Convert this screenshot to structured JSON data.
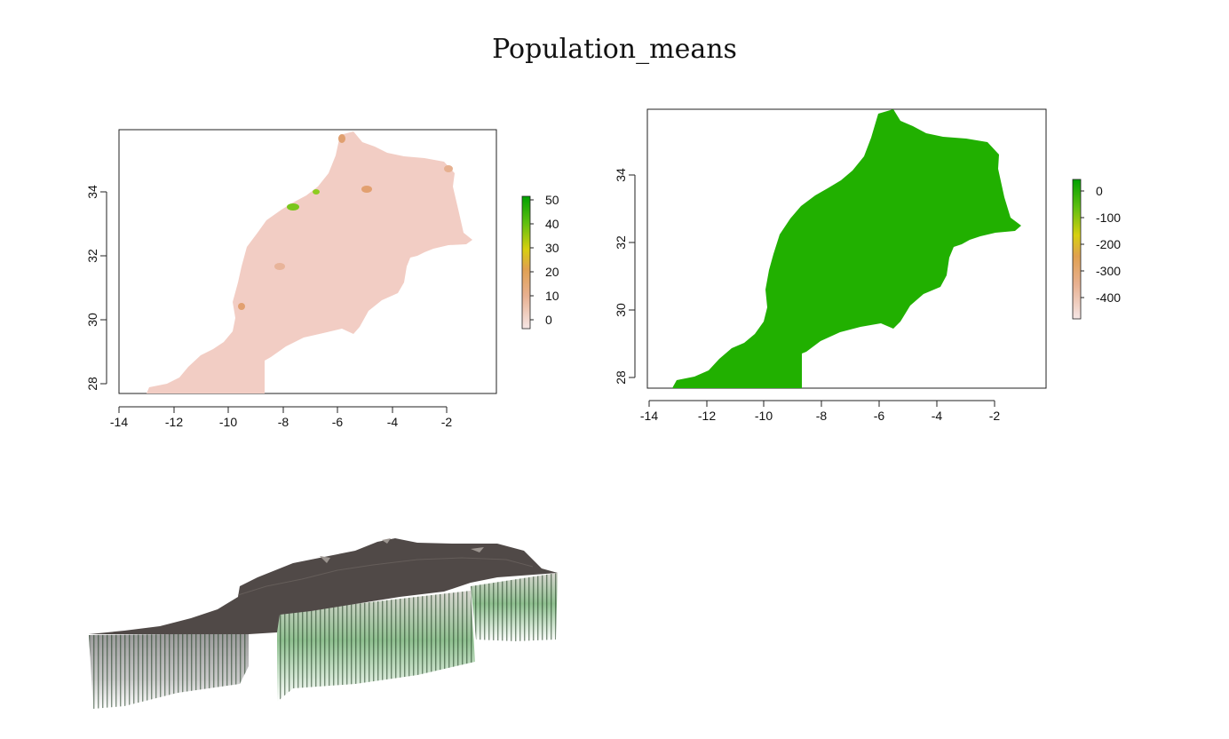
{
  "page": {
    "title": "Population_means"
  },
  "colors": {
    "low": "#f3cfc8",
    "mid": "#e0a060",
    "yellow": "#d7cf10",
    "green": "#2ab100",
    "dark_green": "#138a06",
    "relief_top": "#504947"
  },
  "map_left": {
    "x_ticks": [
      "-14",
      "-12",
      "-10",
      "-8",
      "-6",
      "-4",
      "-2"
    ],
    "y_ticks": [
      "28",
      "30",
      "32",
      "34"
    ],
    "legend_ticks": [
      "0",
      "10",
      "20",
      "30",
      "40",
      "50"
    ]
  },
  "map_right": {
    "x_ticks": [
      "-14",
      "-12",
      "-10",
      "-8",
      "-6",
      "-4",
      "-2"
    ],
    "y_ticks": [
      "28",
      "30",
      "32",
      "34"
    ],
    "legend_ticks": [
      "0",
      "-100",
      "-200",
      "-300",
      "-400"
    ]
  },
  "relief": {
    "view": "3d-perspective"
  }
}
